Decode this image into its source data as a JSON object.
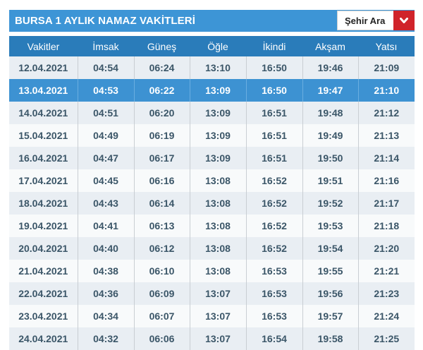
{
  "header": {
    "title": "BURSA 1 AYLIK NAMAZ VAKİTLERİ",
    "city_select": {
      "label": "Şehir Ara",
      "icon": "chevron-down-icon"
    }
  },
  "colors": {
    "title_bar": "#3d95d6",
    "table_header": "#2a7cba",
    "highlight_row": "#3d92d2",
    "dropdown_button": "#d0232a",
    "cell_text": "#3b5668"
  },
  "table": {
    "columns": [
      "Vakitler",
      "İmsak",
      "Güneş",
      "Öğle",
      "İkindi",
      "Akşam",
      "Yatsı"
    ],
    "highlighted_row_index": 1,
    "rows": [
      [
        "12.04.2021",
        "04:54",
        "06:24",
        "13:10",
        "16:50",
        "19:46",
        "21:09"
      ],
      [
        "13.04.2021",
        "04:53",
        "06:22",
        "13:09",
        "16:50",
        "19:47",
        "21:10"
      ],
      [
        "14.04.2021",
        "04:51",
        "06:20",
        "13:09",
        "16:51",
        "19:48",
        "21:12"
      ],
      [
        "15.04.2021",
        "04:49",
        "06:19",
        "13:09",
        "16:51",
        "19:49",
        "21:13"
      ],
      [
        "16.04.2021",
        "04:47",
        "06:17",
        "13:09",
        "16:51",
        "19:50",
        "21:14"
      ],
      [
        "17.04.2021",
        "04:45",
        "06:16",
        "13:08",
        "16:52",
        "19:51",
        "21:16"
      ],
      [
        "18.04.2021",
        "04:43",
        "06:14",
        "13:08",
        "16:52",
        "19:52",
        "21:17"
      ],
      [
        "19.04.2021",
        "04:41",
        "06:13",
        "13:08",
        "16:52",
        "19:53",
        "21:18"
      ],
      [
        "20.04.2021",
        "04:40",
        "06:12",
        "13:08",
        "16:52",
        "19:54",
        "21:20"
      ],
      [
        "21.04.2021",
        "04:38",
        "06:10",
        "13:08",
        "16:53",
        "19:55",
        "21:21"
      ],
      [
        "22.04.2021",
        "04:36",
        "06:09",
        "13:07",
        "16:53",
        "19:56",
        "21:23"
      ],
      [
        "23.04.2021",
        "04:34",
        "06:07",
        "13:07",
        "16:53",
        "19:57",
        "21:24"
      ],
      [
        "24.04.2021",
        "04:32",
        "06:06",
        "13:07",
        "16:54",
        "19:58",
        "21:25"
      ]
    ]
  }
}
